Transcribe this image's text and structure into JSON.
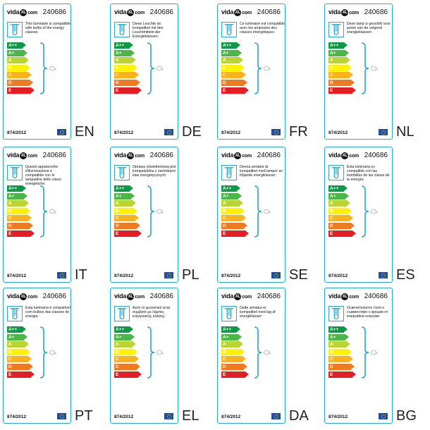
{
  "colors": {
    "border": "#2aa7c9",
    "ap": "#0c9a46",
    "a": "#4cb747",
    "b": "#bcd433",
    "c": "#fff200",
    "d": "#f7b21d",
    "e": "#ee7b22",
    "f": "#e31e24",
    "flag": "#1f4ea1"
  },
  "energy_classes": [
    "A++",
    "A+",
    "A",
    "B",
    "C",
    "D",
    "E"
  ],
  "labels": [
    {
      "brand": "vida",
      "brand_suffix": "com",
      "product_code": "240686",
      "regulation": "874/2012",
      "lang": "EN",
      "text": "This luminaire is compatible with bulbs of the energy classes:"
    },
    {
      "brand": "vida",
      "brand_suffix": "com",
      "product_code": "240686",
      "regulation": "874/2012",
      "lang": "DE",
      "text": "Diese Leuchte ist kompatibel mit den Leuchtmitteln der Energieklassen:"
    },
    {
      "brand": "vida",
      "brand_suffix": "com",
      "product_code": "240686",
      "regulation": "874/2012",
      "lang": "FR",
      "text": "Ce luminaire est compatible avec les ampoules des classes énergétiques:"
    },
    {
      "brand": "vida",
      "brand_suffix": "com",
      "product_code": "240686",
      "regulation": "874/2012",
      "lang": "NL",
      "text": "Deze lamp is geschikt voor peren van de volgend energieklassen:"
    },
    {
      "brand": "vida",
      "brand_suffix": "com",
      "product_code": "240686",
      "regulation": "874/2012",
      "lang": "IT",
      "text": "Questo apparecchio d'illuminazione e compatibile con le lampadine delle classi energetiche:"
    },
    {
      "brand": "vida",
      "brand_suffix": "com",
      "product_code": "240686",
      "regulation": "874/2012",
      "lang": "PL",
      "text": "Oprawa oświetleniowa jest kompatybilna z żarówkami klas energetycznych:"
    },
    {
      "brand": "vida",
      "brand_suffix": "com",
      "product_code": "240686",
      "regulation": "874/2012",
      "lang": "SE",
      "text": "Denna armatur är kompatibel med lampor av följande energiklasser:"
    },
    {
      "brand": "vida",
      "brand_suffix": "com",
      "product_code": "240686",
      "regulation": "874/2012",
      "lang": "ES",
      "text": "Esta luminaria es compatible con las bombillas de las clases de la energía:"
    },
    {
      "brand": "vida",
      "brand_suffix": "com",
      "product_code": "240686",
      "regulation": "874/2012",
      "lang": "PT",
      "text": "Esta luminária é compatível com bulbos das classes de energia:"
    },
    {
      "brand": "vida",
      "brand_suffix": "com",
      "product_code": "240686",
      "regulation": "874/2012",
      "lang": "EL",
      "text": "Αυτό το φωτιστικό είναι συμβατό με λάμπες ενεργειακής κλάσης:"
    },
    {
      "brand": "vida",
      "brand_suffix": "com",
      "product_code": "240686",
      "regulation": "874/2012",
      "lang": "DA",
      "text": "Dette armatur er kompatibel med lag af energiklasser:"
    },
    {
      "brand": "vida",
      "brand_suffix": "com",
      "product_code": "240686",
      "regulation": "874/2012",
      "lang": "BG",
      "text": "Осветителното тяло е съвместимо с крушки от енергийни класове:"
    }
  ]
}
